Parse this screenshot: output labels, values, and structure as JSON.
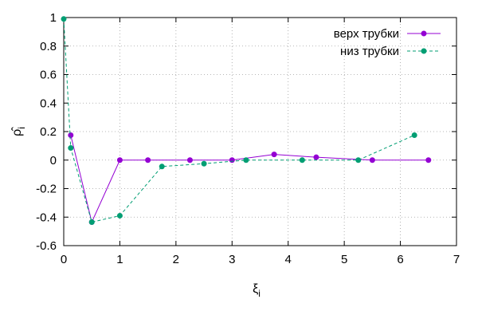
{
  "chart_data": {
    "type": "line",
    "xlabel": "ξ",
    "xlabel_sub": "i",
    "ylabel": "ρ̂",
    "ylabel_sub": "i",
    "xlim": [
      0,
      7
    ],
    "ylim": [
      -0.6,
      1
    ],
    "xticks": [
      "0",
      "1",
      "2",
      "3",
      "4",
      "5",
      "6",
      "7"
    ],
    "yticks": [
      "1",
      "0.8",
      "0.6",
      "0.4",
      "0.2",
      "0",
      "-0.2",
      "-0.4",
      "-0.6"
    ],
    "grid": true,
    "legend_position": "top-right",
    "series": [
      {
        "name": "верх трубки",
        "color": "#9400d3",
        "dash": "solid",
        "x": [
          0.125,
          0.5,
          1.0,
          1.5,
          2.25,
          3.0,
          3.75,
          4.5,
          5.5,
          6.5
        ],
        "y": [
          0.175,
          -0.435,
          0.0,
          0.0,
          0.0,
          0.0,
          0.04,
          0.02,
          0.0,
          0.0
        ]
      },
      {
        "name": "низ трубки",
        "color": "#009e73",
        "dash": "dashed",
        "x": [
          0.0,
          0.125,
          0.5,
          1.0,
          1.75,
          2.5,
          3.25,
          4.25,
          5.25,
          6.25
        ],
        "y": [
          0.99,
          0.085,
          -0.435,
          -0.39,
          -0.045,
          -0.025,
          0.0,
          0.0,
          0.0,
          0.175
        ]
      }
    ]
  }
}
